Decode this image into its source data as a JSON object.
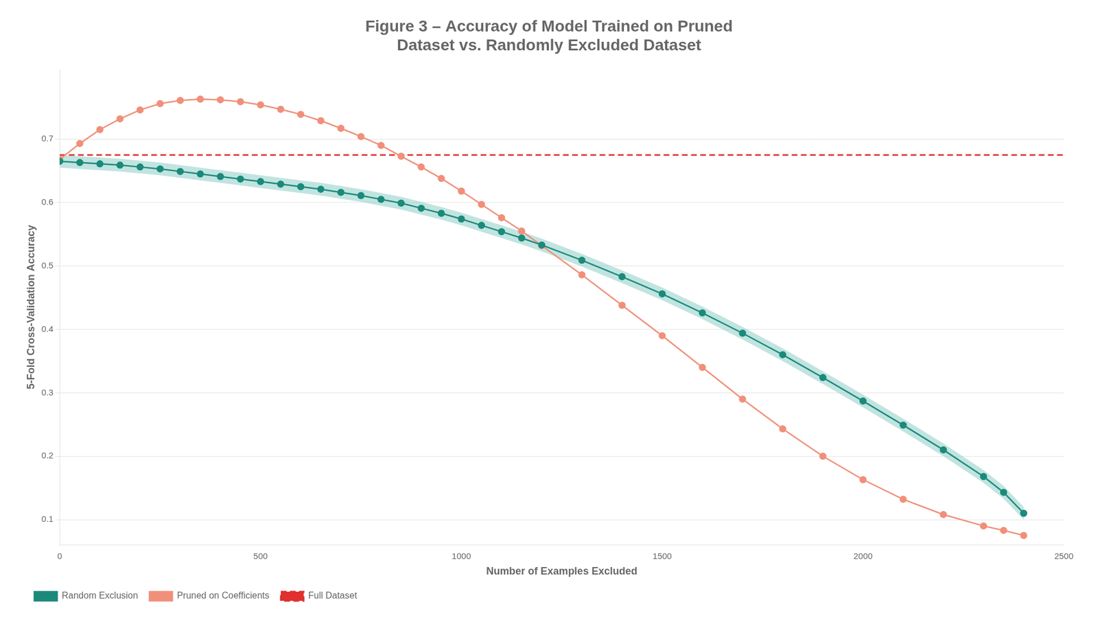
{
  "chart_data": {
    "type": "line",
    "title": [
      "Figure 3 – Accuracy of Model Trained on Pruned",
      "Dataset vs. Randomly Excluded Dataset"
    ],
    "x_label": "Number of Examples Excluded",
    "y_label": "5-Fold Cross-Validation Accuracy",
    "x": [
      0,
      50,
      100,
      150,
      200,
      250,
      300,
      350,
      400,
      450,
      500,
      550,
      600,
      650,
      700,
      750,
      800,
      850,
      900,
      950,
      1000,
      1050,
      1100,
      1150,
      1200,
      1300,
      1400,
      1500,
      1600,
      1700,
      1800,
      1900,
      2000,
      2100,
      2200,
      2300,
      2350,
      2400
    ],
    "series": [
      {
        "name": "Full Dataset",
        "color": "#e03030",
        "line_style": "dashed",
        "value": 0.675
      },
      {
        "name": "Random Exclusion",
        "color": "#1b8a7b",
        "line_style": "solid",
        "marker": "circle",
        "values": [
          0.665,
          0.663,
          0.661,
          0.659,
          0.656,
          0.653,
          0.649,
          0.645,
          0.641,
          0.637,
          0.633,
          0.629,
          0.625,
          0.621,
          0.616,
          0.611,
          0.605,
          0.599,
          0.591,
          0.583,
          0.574,
          0.564,
          0.554,
          0.544,
          0.533,
          0.509,
          0.483,
          0.456,
          0.426,
          0.394,
          0.36,
          0.324,
          0.287,
          0.249,
          0.21,
          0.168,
          0.143,
          0.11
        ],
        "band": {
          "color": "#8ecec7",
          "lower": [
            0.655,
            0.653,
            0.651,
            0.649,
            0.646,
            0.643,
            0.639,
            0.635,
            0.631,
            0.627,
            0.623,
            0.619,
            0.615,
            0.611,
            0.606,
            0.601,
            0.595,
            0.589,
            0.581,
            0.573,
            0.564,
            0.554,
            0.544,
            0.534,
            0.523,
            0.499,
            0.473,
            0.446,
            0.416,
            0.384,
            0.35,
            0.314,
            0.277,
            0.239,
            0.2,
            0.158,
            0.133,
            0.1
          ],
          "upper": [
            0.675,
            0.673,
            0.671,
            0.669,
            0.666,
            0.663,
            0.659,
            0.655,
            0.651,
            0.647,
            0.643,
            0.639,
            0.635,
            0.631,
            0.626,
            0.621,
            0.615,
            0.609,
            0.601,
            0.593,
            0.584,
            0.574,
            0.564,
            0.554,
            0.543,
            0.519,
            0.493,
            0.466,
            0.436,
            0.404,
            0.37,
            0.334,
            0.297,
            0.259,
            0.22,
            0.178,
            0.153,
            0.12
          ]
        }
      },
      {
        "name": "Pruned on Coefficients",
        "color": "#f0907a",
        "line_style": "solid",
        "marker": "circle",
        "values": [
          0.668,
          0.693,
          0.715,
          0.732,
          0.746,
          0.756,
          0.761,
          0.763,
          0.762,
          0.759,
          0.754,
          0.747,
          0.739,
          0.729,
          0.717,
          0.704,
          0.69,
          0.673,
          0.656,
          0.638,
          0.618,
          0.597,
          0.576,
          0.555,
          0.532,
          0.486,
          0.438,
          0.39,
          0.34,
          0.29,
          0.243,
          0.2,
          0.163,
          0.132,
          0.108,
          0.09,
          0.083,
          0.075
        ]
      }
    ],
    "xlim": [
      0,
      2500
    ],
    "xticks": [
      0,
      500,
      1000,
      1500,
      2000,
      2500
    ],
    "ylim": [
      0.06,
      0.81
    ],
    "yticks": [
      0.1,
      0.2,
      0.3,
      0.4,
      0.5,
      0.6,
      0.7
    ],
    "grid": "y",
    "legend": "lower left"
  }
}
